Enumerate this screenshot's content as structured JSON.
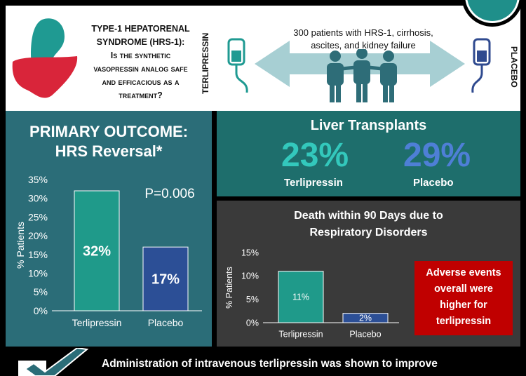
{
  "top": {
    "question_line1": "TYPE-1 HEPATORENAL",
    "question_line2": "SYNDROME (HRS-1):",
    "question_line3": "Is the synthetic",
    "question_line4": "vasopressin analog safe",
    "question_line5": "and efficacious as a",
    "question_line6": "treatment?",
    "arm_left": "TERLIPRESSIN",
    "arm_right": "PLACEBO",
    "study_line1": "300 patients with HRS-1, cirrhosis,",
    "study_line2": "ascites, and kidney failure",
    "colors": {
      "teal": "#1f9a92",
      "navy": "#2f4a8f",
      "liver": "#d9253a",
      "arrow": "#a7cfd3",
      "people": "#2e6d78"
    }
  },
  "primary": {
    "title_line1": "PRIMARY OUTCOME:",
    "title_line2": "HRS Reversal*",
    "p_value": "P=0.006",
    "chart_data": {
      "type": "bar",
      "categories": [
        "Terlipressin",
        "Placebo"
      ],
      "values": [
        32,
        17
      ],
      "value_labels": [
        "32%",
        "17%"
      ],
      "ylabel": "% Patients",
      "ylim": [
        0,
        35
      ],
      "yticks": [
        "0%",
        "5%",
        "10%",
        "15%",
        "20%",
        "25%",
        "30%",
        "35%"
      ],
      "colors": [
        "#1f9a8a",
        "#2c4f96"
      ]
    }
  },
  "liver": {
    "title": "Liver Transplants",
    "terli_value": "23%",
    "placebo_value": "29%",
    "terli_label": "Terlipressin",
    "placebo_label": "Placebo"
  },
  "death": {
    "title_line1": "Death within 90 Days due to",
    "title_line2": "Respiratory Disorders",
    "chart_data": {
      "type": "bar",
      "categories": [
        "Terlipressin",
        "Placebo"
      ],
      "values": [
        11,
        2
      ],
      "value_labels": [
        "11%",
        "2%"
      ],
      "ylabel": "% Patients",
      "ylim": [
        0,
        15
      ],
      "yticks": [
        "0%",
        "5%",
        "10%",
        "15%"
      ],
      "colors": [
        "#1f9a8a",
        "#2c4f96"
      ]
    },
    "adverse_line1": "Adverse events",
    "adverse_line2": "overall  were",
    "adverse_line3": "higher for",
    "adverse_line4": "terlipressin"
  },
  "bottom": {
    "conclusion": "Administration of intravenous terlipressin was shown to improve"
  }
}
